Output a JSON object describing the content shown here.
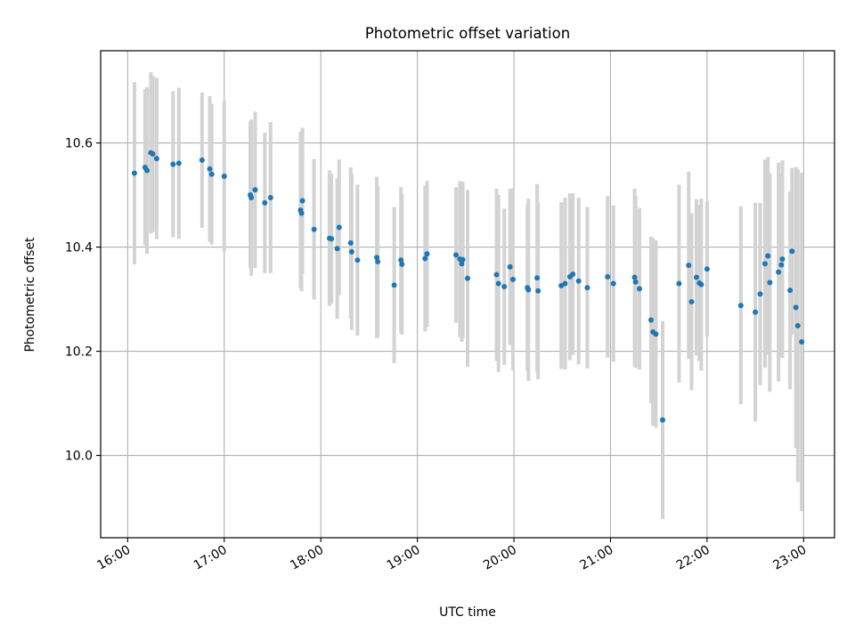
{
  "chart_data": {
    "type": "scatter",
    "title": "Photometric offset variation",
    "xlabel": "UTC time",
    "ylabel": "Photometric offset",
    "x_unit": "hours (UTC, time of day)",
    "xlim": [
      15.72,
      23.32
    ],
    "ylim": [
      9.842,
      10.777
    ],
    "x_ticks": [
      {
        "value": 16,
        "label": "16:00"
      },
      {
        "value": 17,
        "label": "17:00"
      },
      {
        "value": 18,
        "label": "18:00"
      },
      {
        "value": 19,
        "label": "19:00"
      },
      {
        "value": 20,
        "label": "20:00"
      },
      {
        "value": 21,
        "label": "21:00"
      },
      {
        "value": 22,
        "label": "22:00"
      },
      {
        "value": 23,
        "label": "23:00"
      }
    ],
    "y_ticks": [
      {
        "value": 10.0,
        "label": "10.0"
      },
      {
        "value": 10.2,
        "label": "10.2"
      },
      {
        "value": 10.4,
        "label": "10.4"
      },
      {
        "value": 10.6,
        "label": "10.6"
      }
    ],
    "grid": true,
    "legend": "none",
    "point_color": "#1f77b4",
    "errorbar_color": "#d3d3d3",
    "series": [
      {
        "x": [
          16.07,
          16.18,
          16.2,
          16.24,
          16.26,
          16.3,
          16.47,
          16.53,
          16.77,
          16.85,
          16.87,
          17.0,
          17.27,
          17.28,
          17.32,
          17.42,
          17.48,
          17.79,
          17.8,
          17.81,
          17.93,
          18.09,
          18.11,
          18.17,
          18.19,
          18.31,
          18.32,
          18.38,
          18.58,
          18.59,
          18.76,
          18.83,
          18.84,
          19.08,
          19.1,
          19.4,
          19.44,
          19.46,
          19.47,
          19.52,
          19.82,
          19.84,
          19.9,
          19.96,
          19.99,
          20.14,
          20.15,
          20.24,
          20.25,
          20.49,
          20.53,
          20.58,
          20.61,
          20.67,
          20.76,
          20.97,
          21.03,
          21.25,
          21.26,
          21.3,
          21.42,
          21.44,
          21.47,
          21.54,
          21.71,
          21.81,
          21.84,
          21.89,
          21.92,
          21.94,
          22.0,
          22.35,
          22.5,
          22.55,
          22.6,
          22.63,
          22.65,
          22.74,
          22.77,
          22.78,
          22.86,
          22.88,
          22.92,
          22.94,
          22.98
        ],
        "y": [
          10.542,
          10.553,
          10.547,
          10.581,
          10.579,
          10.57,
          10.559,
          10.561,
          10.567,
          10.55,
          10.54,
          10.536,
          10.5,
          10.495,
          10.51,
          10.485,
          10.495,
          10.471,
          10.465,
          10.489,
          10.434,
          10.417,
          10.416,
          10.397,
          10.438,
          10.408,
          10.391,
          10.375,
          10.38,
          10.372,
          10.327,
          10.375,
          10.367,
          10.378,
          10.387,
          10.385,
          10.377,
          10.368,
          10.376,
          10.34,
          10.347,
          10.33,
          10.324,
          10.362,
          10.338,
          10.322,
          10.318,
          10.341,
          10.316,
          10.326,
          10.33,
          10.343,
          10.348,
          10.335,
          10.322,
          10.343,
          10.33,
          10.342,
          10.333,
          10.32,
          10.26,
          10.237,
          10.233,
          10.068,
          10.33,
          10.365,
          10.295,
          10.342,
          10.331,
          10.328,
          10.358,
          10.288,
          10.275,
          10.31,
          10.368,
          10.383,
          10.332,
          10.352,
          10.366,
          10.377,
          10.317,
          10.392,
          10.284,
          10.249,
          10.218
        ],
        "yerr": [
          0.175,
          0.15,
          0.16,
          0.155,
          0.15,
          0.155,
          0.14,
          0.145,
          0.13,
          0.14,
          0.135,
          0.145,
          0.14,
          0.15,
          0.15,
          0.135,
          0.145,
          0.15,
          0.15,
          0.14,
          0.135,
          0.13,
          0.125,
          0.135,
          0.13,
          0.145,
          0.15,
          0.145,
          0.155,
          0.145,
          0.15,
          0.14,
          0.135,
          0.14,
          0.14,
          0.13,
          0.15,
          0.15,
          0.15,
          0.17,
          0.165,
          0.17,
          0.15,
          0.15,
          0.175,
          0.16,
          0.175,
          0.18,
          0.17,
          0.16,
          0.165,
          0.16,
          0.155,
          0.16,
          0.155,
          0.155,
          0.15,
          0.17,
          0.165,
          0.155,
          0.16,
          0.18,
          0.18,
          0.19,
          0.19,
          0.18,
          0.17,
          0.15,
          0.15,
          0.165,
          0.13,
          0.19,
          0.21,
          0.175,
          0.2,
          0.19,
          0.21,
          0.21,
          0.175,
          0.19,
          0.19,
          0.16,
          0.27,
          0.3,
          0.325
        ]
      }
    ]
  }
}
